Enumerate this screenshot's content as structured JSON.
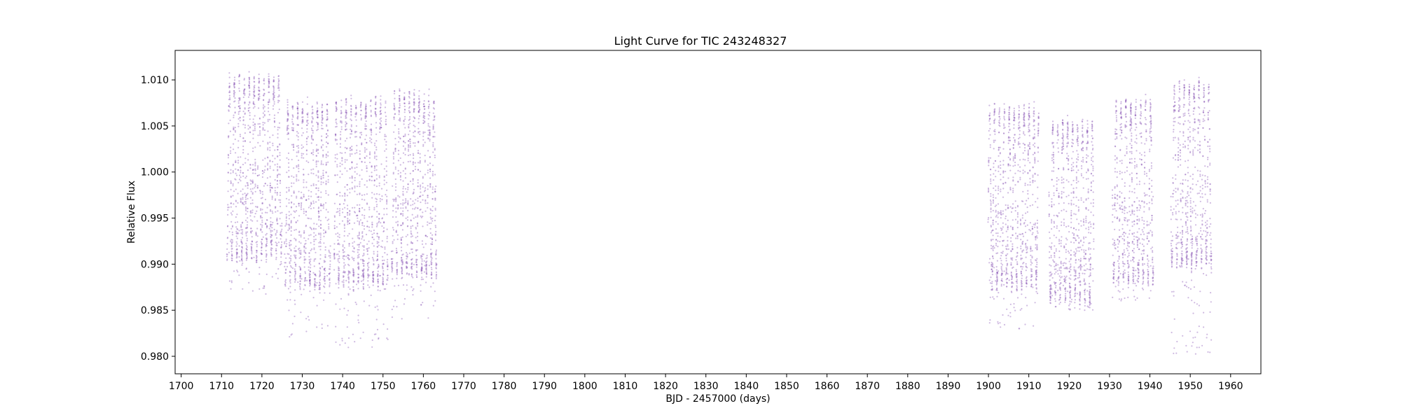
{
  "chart_data": {
    "type": "scatter",
    "title": "Light Curve for TIC 243248327",
    "xlabel": "BJD - 2457000 (days)",
    "ylabel": "Relative Flux",
    "xlim": [
      1698.5,
      1967.5
    ],
    "ylim": [
      0.9781,
      1.0132
    ],
    "xticks": [
      1700,
      1710,
      1720,
      1730,
      1740,
      1750,
      1760,
      1770,
      1780,
      1790,
      1800,
      1810,
      1820,
      1830,
      1840,
      1850,
      1860,
      1870,
      1880,
      1890,
      1900,
      1910,
      1920,
      1930,
      1940,
      1950,
      1960
    ],
    "yticks": [
      0.98,
      0.985,
      0.99,
      0.995,
      1.0,
      1.005,
      1.01
    ],
    "ytick_labels": [
      "0.980",
      "0.985",
      "0.990",
      "0.995",
      "1.000",
      "1.005",
      "1.010"
    ],
    "grid": false,
    "marker_color": "#9467bd",
    "segments": [
      {
        "x_start": 1711.3,
        "x_end": 1725.0,
        "y_min": 0.9864,
        "y_max": 1.0112
      },
      {
        "x_start": 1725.6,
        "x_end": 1737.0,
        "y_min": 0.9818,
        "y_max": 1.0082
      },
      {
        "x_start": 1737.9,
        "x_end": 1751.2,
        "y_min": 0.9806,
        "y_max": 1.0086
      },
      {
        "x_start": 1752.1,
        "x_end": 1763.3,
        "y_min": 0.984,
        "y_max": 1.0094
      },
      {
        "x_start": 1899.9,
        "x_end": 1912.5,
        "y_min": 0.983,
        "y_max": 1.008
      },
      {
        "x_start": 1915.0,
        "x_end": 1926.1,
        "y_min": 0.985,
        "y_max": 1.0064
      },
      {
        "x_start": 1930.7,
        "x_end": 1940.9,
        "y_min": 0.986,
        "y_max": 1.0086
      },
      {
        "x_start": 1945.2,
        "x_end": 1955.3,
        "y_min": 0.98,
        "y_max": 1.0104
      }
    ]
  }
}
